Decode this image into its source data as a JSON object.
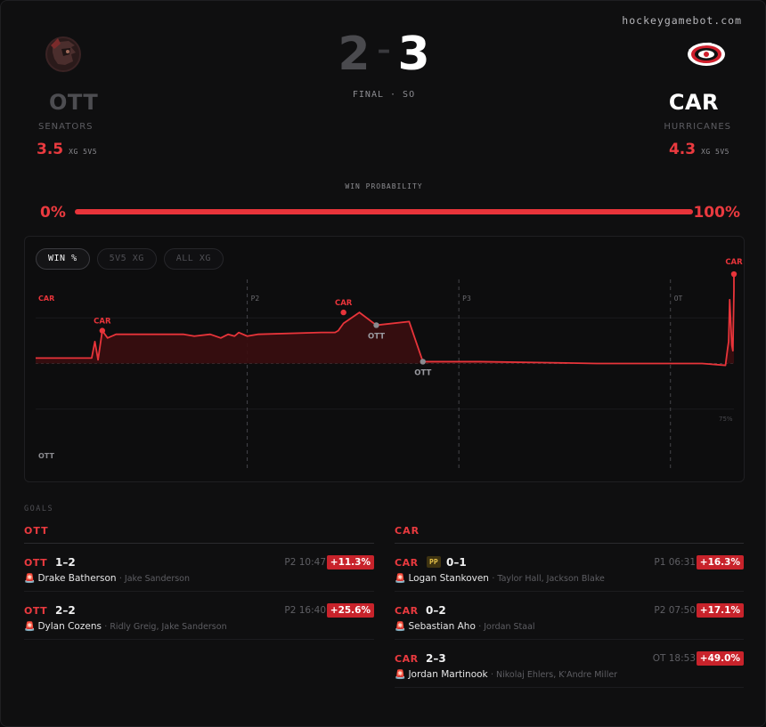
{
  "brand": "hockeygamebot.com",
  "home": {
    "abbr": "OTT",
    "name": "SENATORS",
    "xg": "3.5",
    "xg_label": "XG 5V5",
    "logo": "senators-logo"
  },
  "away": {
    "abbr": "CAR",
    "name": "HURRICANES",
    "xg": "4.3",
    "xg_label": "XG 5V5",
    "logo": "hurricanes-logo"
  },
  "score": {
    "home": "2",
    "away": "3",
    "separator": "–",
    "status": "FINAL · SO"
  },
  "win_probability": {
    "title": "WIN PROBABILITY",
    "left": "0%",
    "right": "100%",
    "car_final": 1.0
  },
  "tabs": [
    {
      "label": "WIN %",
      "active": true
    },
    {
      "label": "5V5 XG",
      "active": false
    },
    {
      "label": "ALL XG",
      "active": false
    }
  ],
  "chart": {
    "top_label": "CAR",
    "bottom_label": "OTT",
    "period_labels": [
      "P2",
      "P3",
      "OT"
    ],
    "ref_label": "75%",
    "colors": {
      "line": "#e8343a",
      "fill": "#3a0d10",
      "ott_marker": "#8a8a8f"
    }
  },
  "chart_data": {
    "type": "area",
    "title": "",
    "xlabel": "",
    "ylabel": "",
    "x_unit": "game minutes",
    "xlim": [
      0,
      66
    ],
    "ylim": [
      0,
      1
    ],
    "y_metric": "CAR win probability",
    "period_dividers": [
      20,
      40,
      60
    ],
    "series": [
      {
        "points": [
          [
            0,
            0.53
          ],
          [
            5.3,
            0.53
          ],
          [
            5.6,
            0.62
          ],
          [
            5.9,
            0.52
          ],
          [
            6.3,
            0.68
          ],
          [
            6.8,
            0.64
          ],
          [
            7.6,
            0.66
          ],
          [
            14,
            0.66
          ],
          [
            15,
            0.65
          ],
          [
            16.5,
            0.66
          ],
          [
            17.5,
            0.64
          ],
          [
            18.2,
            0.66
          ],
          [
            18.8,
            0.65
          ],
          [
            19.2,
            0.67
          ],
          [
            20,
            0.65
          ],
          [
            21,
            0.66
          ],
          [
            27,
            0.67
          ],
          [
            28.3,
            0.67
          ],
          [
            28.6,
            0.68
          ],
          [
            29.1,
            0.72
          ],
          [
            30.6,
            0.78
          ],
          [
            32.2,
            0.71
          ],
          [
            35.3,
            0.73
          ],
          [
            36.6,
            0.51
          ],
          [
            42,
            0.51
          ],
          [
            48,
            0.505
          ],
          [
            53,
            0.5
          ],
          [
            59,
            0.5
          ],
          [
            63,
            0.5
          ],
          [
            65.2,
            0.49
          ],
          [
            65.4,
            0.58
          ],
          [
            65.5,
            0.62
          ],
          [
            65.6,
            0.85
          ],
          [
            65.8,
            0.6
          ],
          [
            65.9,
            0.57
          ],
          [
            66,
            0.9
          ],
          [
            66,
            0.99
          ]
        ]
      }
    ],
    "goal_markers": [
      {
        "team": "CAR",
        "x": 6.3,
        "y": 0.68
      },
      {
        "team": "CAR",
        "x": 29.1,
        "y": 0.78
      },
      {
        "team": "OTT",
        "x": 32.2,
        "y": 0.71
      },
      {
        "team": "OTT",
        "x": 36.6,
        "y": 0.51
      },
      {
        "team": "CAR",
        "x": 66,
        "y": 0.99
      }
    ],
    "grid": true,
    "legend": "none"
  },
  "goals_header": "GOALS",
  "goals": {
    "left": {
      "title": "OTT",
      "items": [
        {
          "team": "OTT",
          "score": "1–2",
          "pp": "",
          "time": "P2 10:47",
          "delta": "+11.3%",
          "scorer": "Drake Batherson",
          "assists": "· Jake Sanderson"
        },
        {
          "team": "OTT",
          "score": "2–2",
          "pp": "",
          "time": "P2 16:40",
          "delta": "+25.6%",
          "scorer": "Dylan Cozens",
          "assists": "· Ridly Greig, Jake Sanderson"
        }
      ]
    },
    "right": {
      "title": "CAR",
      "items": [
        {
          "team": "CAR",
          "score": "0–1",
          "pp": "PP",
          "time": "P1 06:31",
          "delta": "+16.3%",
          "scorer": "Logan Stankoven",
          "assists": "· Taylor Hall, Jackson Blake"
        },
        {
          "team": "CAR",
          "score": "0–2",
          "pp": "",
          "time": "P2 07:50",
          "delta": "+17.1%",
          "scorer": "Sebastian Aho",
          "assists": "· Jordan Staal"
        },
        {
          "team": "CAR",
          "score": "2–3",
          "pp": "",
          "time": "OT 18:53",
          "delta": "+49.0%",
          "scorer": "Jordan Martinook",
          "assists": "· Nikolaj Ehlers, K'Andre Miller"
        }
      ]
    }
  }
}
